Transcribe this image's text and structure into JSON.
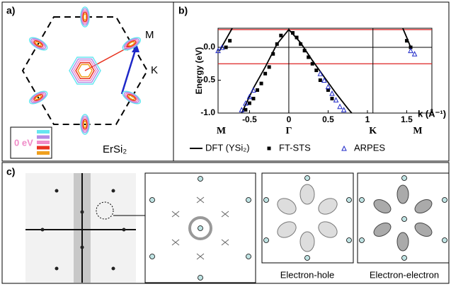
{
  "panel_a": {
    "label": "a)",
    "point_m": "M",
    "point_k": "K",
    "material": "ErSi₂",
    "legend_label": "0 eV",
    "legend_colors": [
      "#66e6f0",
      "#b48ce6",
      "#f08cc8",
      "#e8321e",
      "#f0a01e"
    ]
  },
  "chart_data": {
    "type": "line",
    "panel_label": "b)",
    "ylabel": "Energy (eV)",
    "xlabel": "k (Å⁻¹)",
    "xlim": [
      -0.9,
      1.82
    ],
    "ylim": [
      -1.0,
      0.29
    ],
    "xticks": [
      -0.5,
      0,
      0.5,
      1,
      1.5
    ],
    "yticks": [
      {
        "value": 0,
        "label": "0.0"
      },
      {
        "value": -0.5,
        "label": "-0.5"
      },
      {
        "value": -1,
        "label": "-1.0"
      }
    ],
    "energy_window": [
      -0.25,
      0.27
    ],
    "symmetry_points": [
      {
        "label": "M",
        "x": -0.86
      },
      {
        "label": "Γ",
        "x": 0
      },
      {
        "label": "K",
        "x": 1.07
      },
      {
        "label": "M",
        "x": 1.64
      }
    ],
    "series": [
      {
        "name": "DFT (YSi₂)",
        "color": "#000000",
        "marker": "line",
        "x": [
          -0.72,
          -0.8,
          -0.88,
          null,
          -0.6,
          -0.45,
          -0.3,
          -0.15,
          0,
          0.15,
          0.3,
          0.45,
          0.6,
          0.75,
          0.8,
          null,
          1.45,
          1.5,
          1.55
        ],
        "values": [
          0.29,
          0.12,
          -0.05,
          null,
          -1.0,
          -0.62,
          -0.3,
          0.05,
          0.27,
          0.07,
          -0.2,
          -0.45,
          -0.7,
          -0.93,
          -1.0,
          null,
          0.29,
          0.15,
          0.0
        ]
      },
      {
        "name": "FT-STS",
        "color": "#000000",
        "marker": "square",
        "x": [
          -0.8,
          -0.75,
          -0.55,
          -0.5,
          -0.45,
          -0.4,
          -0.35,
          -0.3,
          -0.25,
          -0.2,
          -0.15,
          -0.1,
          0.05,
          0.1,
          0.15,
          0.2,
          0.25,
          0.3,
          0.35,
          0.4,
          0.5,
          0.55,
          1.5,
          1.55
        ],
        "values": [
          0.0,
          0.1,
          -0.95,
          -0.85,
          -0.78,
          -0.65,
          -0.55,
          -0.4,
          -0.3,
          -0.1,
          0.05,
          0.18,
          0.22,
          0.15,
          0.05,
          -0.05,
          -0.15,
          -0.25,
          -0.35,
          -0.5,
          -0.65,
          -0.78,
          0.1,
          0.0
        ]
      },
      {
        "name": "ARPES",
        "color": "#1e28c8",
        "marker": "triangle",
        "x": [
          -0.9,
          -0.85,
          -0.6,
          -0.55,
          -0.5,
          -0.45,
          0.4,
          0.45,
          0.5,
          0.55,
          0.6,
          0.65,
          0.7,
          1.55,
          1.6
        ],
        "values": [
          -0.05,
          0.0,
          -0.95,
          -0.85,
          -0.75,
          -0.65,
          -0.4,
          -0.5,
          -0.6,
          -0.7,
          -0.8,
          -0.9,
          -0.95,
          -0.05,
          -0.1
        ]
      }
    ]
  },
  "panel_c": {
    "label": "c)",
    "captions": [
      "Electron-hole",
      "Electron-electron"
    ]
  }
}
